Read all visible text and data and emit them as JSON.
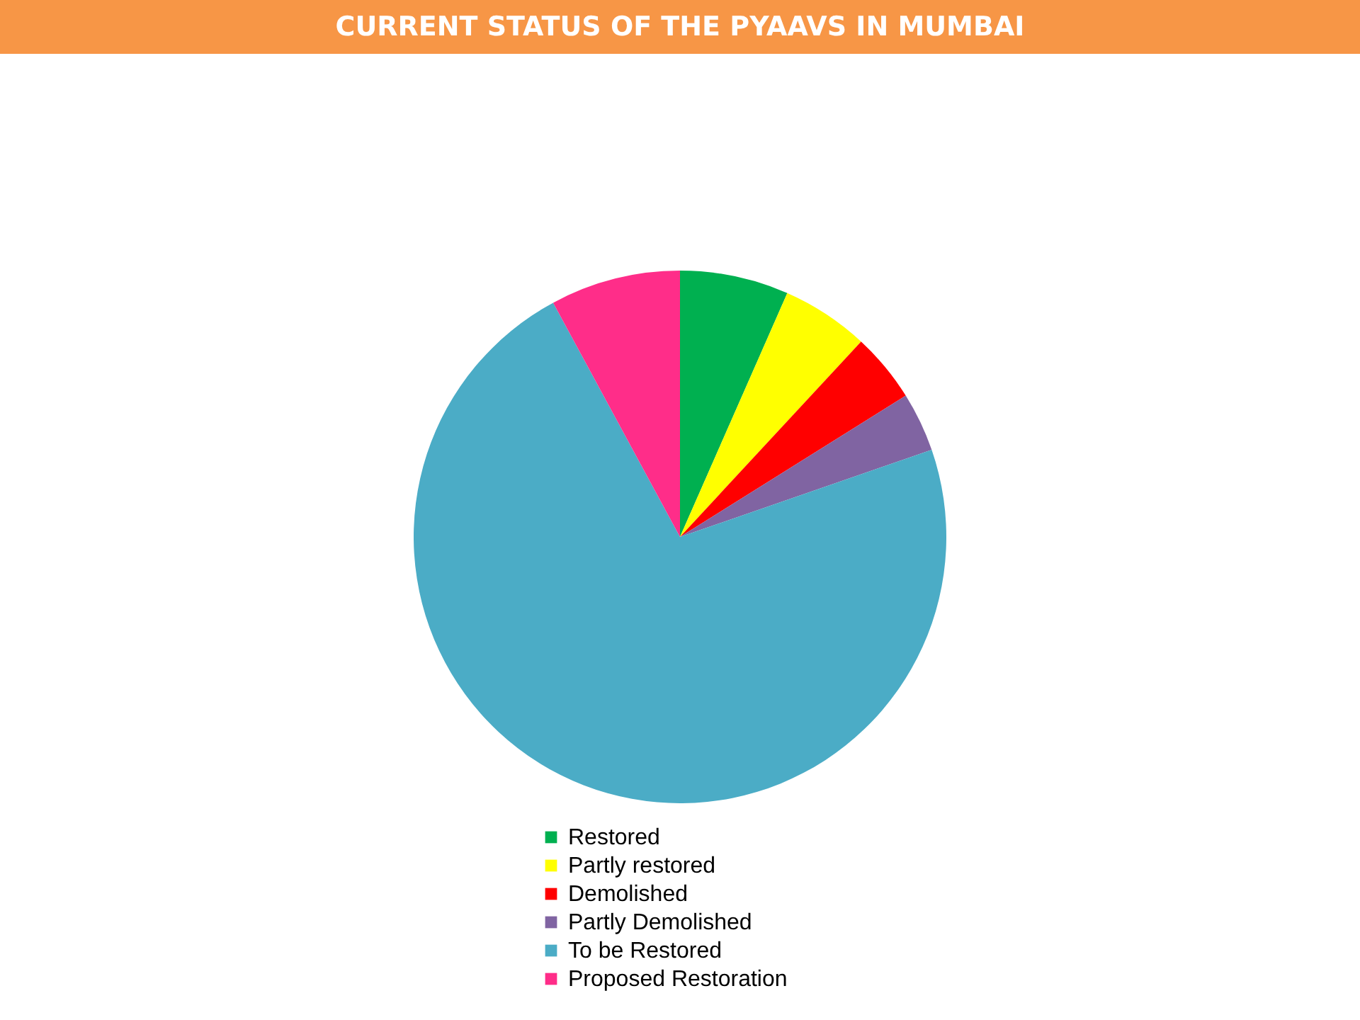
{
  "chart_data": {
    "type": "pie",
    "title": "CURRENT STATUS OF THE PYAAVS IN MUMBAI",
    "categories": [
      "Restored",
      "Partly restored",
      "Demolished",
      "Partly Demolished",
      "To be Restored",
      "Proposed Restoration"
    ],
    "values": [
      6.6,
      5.3,
      4.2,
      3.6,
      72.4,
      7.9
    ],
    "colors": [
      "#00b050",
      "#ffff00",
      "#ff0000",
      "#8064a2",
      "#4bacc6",
      "#ff2d89"
    ],
    "legend": "bottom"
  }
}
